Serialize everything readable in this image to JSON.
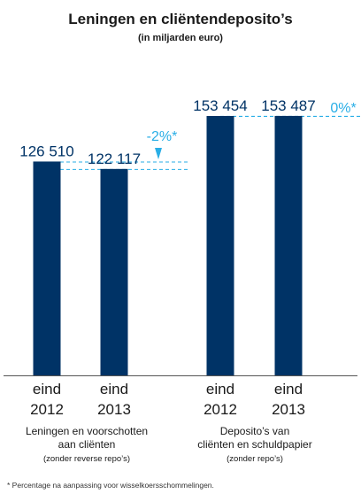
{
  "title": "Leningen en cliëntendeposito’s",
  "subtitle": "(in miljarden euro)",
  "footnote": "* Percentage na aanpassing voor wisselkoersschommelingen.",
  "colors": {
    "bar": "#003366",
    "accent": "#29aee6",
    "axis": "#555555"
  },
  "chart_data": [
    {
      "type": "bar",
      "categories": [
        "eind 2012",
        "eind 2013"
      ],
      "tick_labels": [
        [
          "eind",
          "2012"
        ],
        [
          "eind",
          "2013"
        ]
      ],
      "values": [
        126510,
        122117
      ],
      "value_labels": [
        "126 510",
        "122 117"
      ],
      "change_label": "-2%*",
      "change_marker": "down-triangle",
      "group_label": [
        "Leningen en voorschotten",
        "aan cliënten"
      ],
      "group_note": "(zonder reverse repo’s)"
    },
    {
      "type": "bar",
      "categories": [
        "eind 2012",
        "eind 2013"
      ],
      "tick_labels": [
        [
          "eind",
          "2012"
        ],
        [
          "eind",
          "2013"
        ]
      ],
      "values": [
        153454,
        153487
      ],
      "value_labels": [
        "153 454",
        "153 487"
      ],
      "change_label": "0%*",
      "group_label": [
        "Deposito’s van",
        "cliënten en schuldpapier"
      ],
      "group_note": "(zonder repo’s)"
    }
  ]
}
